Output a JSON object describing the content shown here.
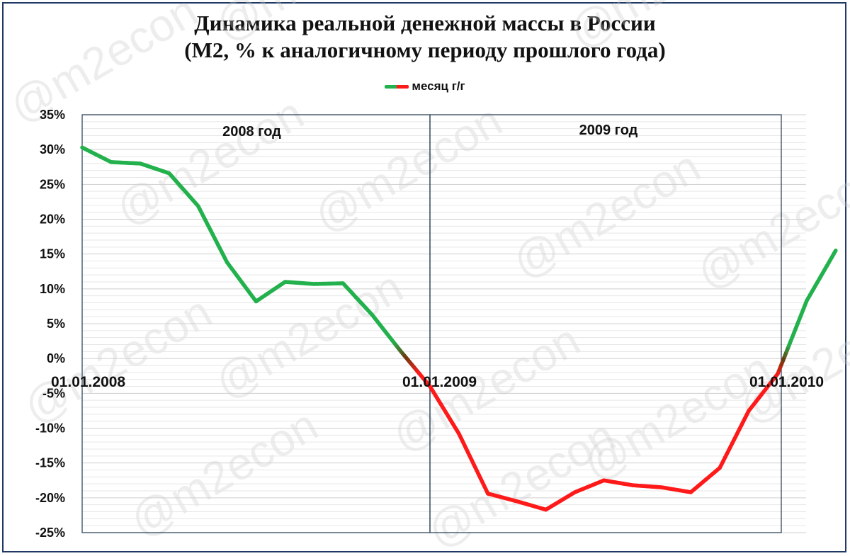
{
  "chart_data": {
    "type": "line",
    "title_line1": "Динамика реальной денежной массы в России",
    "title_line2": "(М2, % к аналогичному периоду прошлого года)",
    "legend": "месяц г/г",
    "watermark": "@m2econ",
    "panel_labels": [
      "2008 год",
      "2009 год"
    ],
    "date_labels": [
      "01.01.2008",
      "01.01.2009",
      "01.01.2010"
    ],
    "y_tick_labels": [
      "35%",
      "30%",
      "25%",
      "20%",
      "15%",
      "10%",
      "5%",
      "0%",
      "-5%",
      "-10%",
      "-15%",
      "-20%",
      "-25%"
    ],
    "ylim": [
      -25,
      35
    ],
    "y_ticks": [
      35,
      30,
      25,
      20,
      15,
      10,
      5,
      0,
      -5,
      -10,
      -15,
      -20,
      -25
    ],
    "grid": true,
    "colors": {
      "positive": "#22b14c",
      "negative": "#ff1a1a",
      "border": "#1f3864",
      "divider": "#34495e"
    },
    "series": [
      {
        "values": [
          30.3,
          28.2,
          28.0,
          26.6,
          21.9,
          13.8,
          8.2,
          11.0,
          10.7,
          10.8,
          6.3,
          1.0,
          -4.0,
          -10.8,
          -19.4,
          -20.5,
          -21.7,
          -19.2,
          -17.5,
          -18.2,
          -18.5,
          -19.2,
          -15.7,
          -7.5,
          -2.2,
          8.3,
          15.5
        ]
      }
    ]
  }
}
